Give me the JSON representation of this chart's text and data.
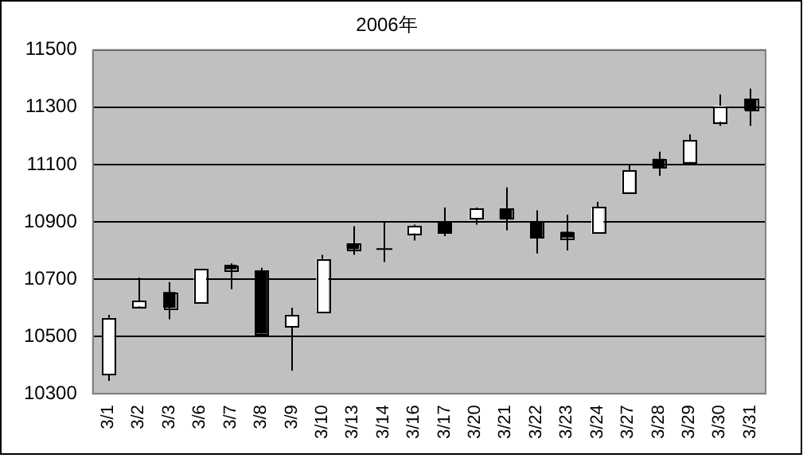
{
  "chart_data": {
    "type": "candlestick",
    "title": "2006年",
    "categories": [
      "3/1",
      "3/2",
      "3/3",
      "3/6",
      "3/7",
      "3/8",
      "3/9",
      "3/10",
      "3/13",
      "3/14",
      "3/16",
      "3/17",
      "3/20",
      "3/21",
      "3/22",
      "3/23",
      "3/24",
      "3/27",
      "3/28",
      "3/29",
      "3/30",
      "3/31"
    ],
    "ohlc": [
      [
        10370,
        10575,
        10345,
        10565
      ],
      [
        10605,
        10705,
        10600,
        10625
      ],
      [
        10655,
        10690,
        10560,
        10600
      ],
      [
        10620,
        10735,
        10620,
        10735
      ],
      [
        10750,
        10755,
        10665,
        10735
      ],
      [
        10730,
        10740,
        10510,
        10510
      ],
      [
        10535,
        10600,
        10380,
        10575
      ],
      [
        10585,
        10785,
        10585,
        10770
      ],
      [
        10825,
        10885,
        10785,
        10805
      ],
      [
        10805,
        10900,
        10760,
        10805
      ],
      [
        10860,
        10890,
        10835,
        10885
      ],
      [
        10900,
        10950,
        10850,
        10860
      ],
      [
        10910,
        10950,
        10890,
        10945
      ],
      [
        10945,
        11020,
        10870,
        10910
      ],
      [
        10900,
        10940,
        10790,
        10845
      ],
      [
        10865,
        10925,
        10800,
        10845
      ],
      [
        10860,
        10970,
        10860,
        10950
      ],
      [
        11005,
        11100,
        11005,
        11080
      ],
      [
        11120,
        11145,
        11060,
        11090
      ],
      [
        11110,
        11205,
        11110,
        11185
      ],
      [
        11250,
        11345,
        11235,
        11305
      ],
      [
        11330,
        11365,
        11235,
        11290
      ]
    ],
    "ylim": [
      10300,
      11500
    ],
    "yticks": [
      10300,
      10500,
      10700,
      10900,
      11100,
      11300,
      11500
    ],
    "grid": "y",
    "legend": false
  }
}
